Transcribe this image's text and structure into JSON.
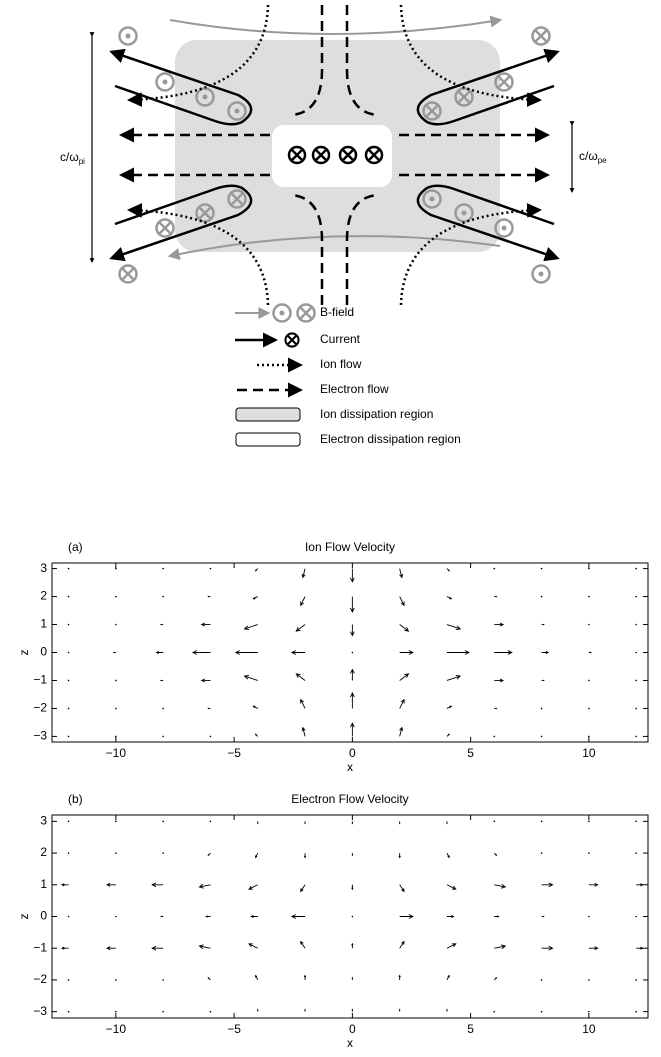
{
  "diagram": {
    "scales": [
      {
        "text": "c/ω",
        "sub": "pi"
      },
      {
        "text": "c/ω",
        "sub": "pe"
      }
    ],
    "legend": [
      {
        "label": "B-field"
      },
      {
        "label": "Current"
      },
      {
        "label": "Ion flow"
      },
      {
        "label": "Electron flow"
      },
      {
        "label": "Ion dissipation region"
      },
      {
        "label": "Electron dissipation region"
      }
    ]
  },
  "chart_data": [
    {
      "type": "quiver",
      "panel_label": "(a)",
      "title": "Ion Flow Velocity",
      "xlabel": "x",
      "ylabel": "z",
      "xlim": [
        -12.7,
        12.5
      ],
      "ylim": [
        -3.2,
        3.2
      ],
      "xticks": [
        {
          "value": -10,
          "label": "−10"
        },
        {
          "value": -5,
          "label": "−5"
        },
        0,
        5,
        10
      ],
      "yticks": [
        {
          "value": -3,
          "label": "−3"
        },
        {
          "value": -2,
          "label": "−2"
        },
        {
          "value": -1,
          "label": "−1"
        },
        0,
        1,
        2,
        3
      ],
      "color": "#000000",
      "x": [
        -12,
        -10,
        -8,
        -6,
        -4,
        -2,
        0,
        2,
        4,
        6,
        8,
        10,
        12
      ],
      "z": [
        -3,
        -2,
        -1,
        0,
        1,
        2,
        3
      ],
      "u": [
        [
          0,
          0,
          0,
          0,
          -0.1,
          -0.1,
          0,
          0.1,
          0.1,
          0,
          0,
          0,
          0
        ],
        [
          0,
          0,
          0,
          -0.1,
          -0.2,
          -0.2,
          0,
          0.2,
          0.2,
          0.1,
          0,
          0,
          0
        ],
        [
          0,
          0,
          -0.1,
          -0.4,
          -0.6,
          -0.4,
          0,
          0.4,
          0.6,
          0.4,
          0.1,
          0,
          0
        ],
        [
          0,
          -0.1,
          -0.3,
          -0.8,
          -1,
          -0.6,
          0,
          0.6,
          1,
          0.8,
          0.3,
          0.1,
          0
        ],
        [
          0,
          0,
          -0.1,
          -0.4,
          -0.6,
          -0.4,
          0,
          0.4,
          0.6,
          0.4,
          0.1,
          0,
          0
        ],
        [
          0,
          0,
          0,
          -0.1,
          -0.2,
          -0.2,
          0,
          0.2,
          0.2,
          0.1,
          0,
          0,
          0
        ],
        [
          0,
          0,
          0,
          0,
          -0.1,
          -0.1,
          0,
          0.1,
          0.1,
          0,
          0,
          0,
          0
        ]
      ],
      "w": [
        [
          0,
          0,
          0,
          0,
          0.1,
          0.4,
          0.6,
          0.4,
          0.1,
          0,
          0,
          0,
          0
        ],
        [
          0,
          0,
          0,
          0,
          0.1,
          0.4,
          0.7,
          0.4,
          0.1,
          0,
          0,
          0,
          0
        ],
        [
          0,
          0,
          0,
          0,
          0.2,
          0.3,
          0.5,
          0.3,
          0.2,
          0,
          0,
          0,
          0
        ],
        [
          0,
          0,
          0,
          0,
          0,
          0,
          0,
          0,
          0,
          0,
          0,
          0,
          0
        ],
        [
          0,
          0,
          0,
          0,
          -0.2,
          -0.3,
          -0.5,
          -0.3,
          -0.2,
          0,
          0,
          0,
          0
        ],
        [
          0,
          0,
          0,
          0,
          -0.1,
          -0.4,
          -0.7,
          -0.4,
          -0.1,
          0,
          0,
          0,
          0
        ],
        [
          0,
          0,
          0,
          0,
          -0.1,
          -0.4,
          -0.6,
          -0.4,
          -0.1,
          0,
          0,
          0,
          0
        ]
      ]
    },
    {
      "type": "quiver",
      "panel_label": "(b)",
      "title": "Electron Flow Velocity",
      "xlabel": "x",
      "ylabel": "z",
      "xlim": [
        -12.7,
        12.5
      ],
      "ylim": [
        -3.2,
        3.2
      ],
      "xticks": [
        {
          "value": -10,
          "label": "−10"
        },
        {
          "value": -5,
          "label": "−5"
        },
        0,
        5,
        10
      ],
      "yticks": [
        {
          "value": -3,
          "label": "−3"
        },
        {
          "value": -2,
          "label": "−2"
        },
        {
          "value": -1,
          "label": "−1"
        },
        0,
        1,
        2,
        3
      ],
      "color": "#000000",
      "x": [
        -12,
        -10,
        -8,
        -6,
        -4,
        -2,
        0,
        2,
        4,
        6,
        8,
        10,
        12
      ],
      "z": [
        -3,
        -2,
        -1,
        0,
        1,
        2,
        3
      ],
      "u": [
        [
          0,
          0,
          0,
          0,
          0,
          0,
          0,
          0,
          0,
          0,
          0,
          0,
          0
        ],
        [
          0,
          0,
          0,
          -0.1,
          -0.1,
          0,
          0,
          0,
          0.1,
          0.1,
          0,
          0,
          0
        ],
        [
          -0.3,
          -0.4,
          -0.5,
          -0.5,
          -0.4,
          -0.2,
          0,
          0.2,
          0.4,
          0.5,
          0.5,
          0.4,
          0.3
        ],
        [
          0,
          0,
          -0.1,
          -0.2,
          -0.3,
          -0.6,
          0,
          0.6,
          0.3,
          0.2,
          0.1,
          0,
          0
        ],
        [
          -0.3,
          -0.4,
          -0.5,
          -0.5,
          -0.4,
          -0.2,
          0,
          0.2,
          0.4,
          0.5,
          0.5,
          0.4,
          0.3
        ],
        [
          0,
          0,
          0,
          -0.1,
          -0.1,
          0,
          0,
          0,
          0.1,
          0.1,
          0,
          0,
          0
        ],
        [
          0,
          0,
          0,
          0,
          0,
          0,
          0,
          0,
          0,
          0,
          0,
          0,
          0
        ]
      ],
      "w": [
        [
          0,
          0,
          0,
          0,
          0.1,
          0.1,
          0.1,
          0.1,
          0.1,
          0,
          0,
          0,
          0
        ],
        [
          0,
          0,
          0,
          0.1,
          0.2,
          0.2,
          0.1,
          0.2,
          0.2,
          0.1,
          0,
          0,
          0
        ],
        [
          0,
          0,
          0,
          0.1,
          0.2,
          0.3,
          0.2,
          0.3,
          0.2,
          0.1,
          0,
          0,
          0
        ],
        [
          0,
          0,
          0,
          0,
          0,
          0,
          0,
          0,
          0,
          0,
          0,
          0,
          0
        ],
        [
          0,
          0,
          0,
          -0.1,
          -0.2,
          -0.3,
          -0.2,
          -0.3,
          -0.2,
          -0.1,
          0,
          0,
          0
        ],
        [
          0,
          0,
          0,
          -0.1,
          -0.2,
          -0.2,
          -0.1,
          -0.2,
          -0.2,
          -0.1,
          0,
          0,
          0
        ],
        [
          0,
          0,
          0,
          0,
          -0.1,
          -0.1,
          -0.1,
          -0.1,
          -0.1,
          0,
          0,
          0,
          0
        ]
      ]
    }
  ]
}
